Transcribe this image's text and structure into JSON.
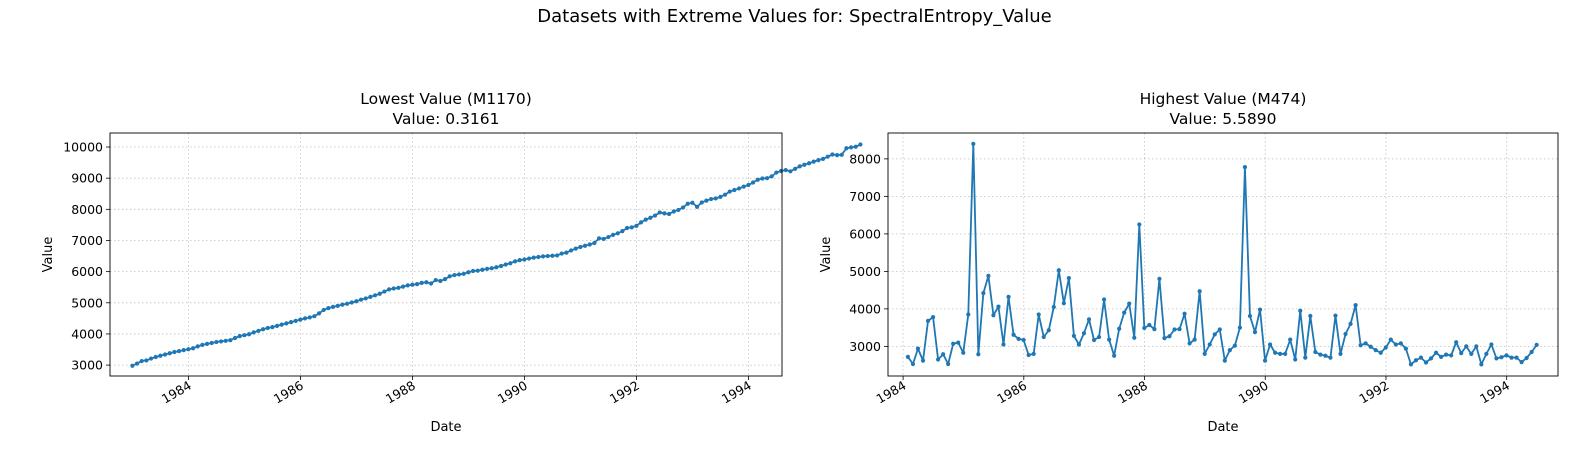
{
  "suptitle": "Datasets with Extreme Values for: SpectralEntropy_Value",
  "colors": {
    "line": "#1f77b4",
    "grid": "#b0b0b0"
  },
  "chart_data": [
    {
      "type": "line",
      "title_line1": "Lowest Value (M1170)",
      "title_line2": "Value: 0.3161",
      "xlabel": "Date",
      "ylabel": "Value",
      "grid": true,
      "xlim": [
        1982.6,
        1994.6
      ],
      "ylim": [
        2650,
        10450
      ],
      "x_ticks": [
        1984,
        1986,
        1988,
        1990,
        1992,
        1994
      ],
      "y_ticks": [
        3000,
        4000,
        5000,
        6000,
        7000,
        8000,
        9000,
        10000
      ],
      "series": [
        {
          "x_start": 1983.0,
          "x_step": 0.0833333,
          "values": [
            2980,
            3050,
            3130,
            3150,
            3210,
            3260,
            3300,
            3340,
            3380,
            3420,
            3450,
            3480,
            3510,
            3540,
            3600,
            3650,
            3680,
            3710,
            3740,
            3760,
            3780,
            3800,
            3870,
            3930,
            3960,
            3990,
            4050,
            4100,
            4150,
            4190,
            4220,
            4260,
            4300,
            4340,
            4380,
            4420,
            4460,
            4500,
            4530,
            4570,
            4660,
            4770,
            4830,
            4870,
            4900,
            4940,
            4970,
            5010,
            5050,
            5100,
            5140,
            5190,
            5240,
            5290,
            5360,
            5430,
            5460,
            5480,
            5520,
            5560,
            5580,
            5600,
            5640,
            5660,
            5620,
            5730,
            5700,
            5760,
            5850,
            5890,
            5910,
            5930,
            5980,
            6020,
            6030,
            6060,
            6090,
            6110,
            6140,
            6180,
            6230,
            6270,
            6330,
            6370,
            6390,
            6420,
            6450,
            6470,
            6490,
            6500,
            6510,
            6520,
            6580,
            6610,
            6680,
            6740,
            6790,
            6830,
            6870,
            6920,
            7070,
            7050,
            7110,
            7180,
            7230,
            7300,
            7400,
            7420,
            7470,
            7580,
            7670,
            7730,
            7800,
            7900,
            7870,
            7850,
            7930,
            7980,
            8060,
            8180,
            8210,
            8080,
            8220,
            8280,
            8330,
            8350,
            8400,
            8470,
            8570,
            8620,
            8670,
            8730,
            8780,
            8860,
            8950,
            8990,
            9000,
            9060,
            9180,
            9230,
            9260,
            9220,
            9300,
            9380,
            9430,
            9480,
            9530,
            9580,
            9620,
            9690,
            9760,
            9740,
            9750,
            9960,
            9990,
            10010,
            10080
          ]
        }
      ]
    },
    {
      "type": "line",
      "title_line1": "Highest Value (M474)",
      "title_line2": "Value: 5.5890",
      "xlabel": "Date",
      "ylabel": "Value",
      "grid": true,
      "xlim": [
        1983.75,
        1994.85
      ],
      "ylim": [
        2210,
        8690
      ],
      "x_ticks": [
        1984,
        1986,
        1988,
        1990,
        1992,
        1994
      ],
      "y_ticks": [
        3000,
        4000,
        5000,
        6000,
        7000,
        8000
      ],
      "series": [
        {
          "x_start": 1984.08,
          "x_step": 0.0833333,
          "values": [
            2720,
            2530,
            2940,
            2620,
            3680,
            3780,
            2650,
            2790,
            2530,
            3070,
            3100,
            2830,
            3850,
            8400,
            2790,
            4420,
            4880,
            3830,
            4060,
            3050,
            4320,
            3310,
            3200,
            3170,
            2770,
            2800,
            3850,
            3250,
            3430,
            4050,
            5030,
            4150,
            4820,
            3280,
            3050,
            3350,
            3720,
            3170,
            3250,
            4250,
            3180,
            2750,
            3470,
            3900,
            4140,
            3230,
            6250,
            3490,
            3570,
            3460,
            4800,
            3220,
            3270,
            3450,
            3460,
            3870,
            3080,
            3180,
            4470,
            2800,
            3050,
            3320,
            3450,
            2620,
            2900,
            3020,
            3500,
            7780,
            3810,
            3380,
            3980,
            2620,
            3050,
            2830,
            2800,
            2800,
            3180,
            2650,
            3950,
            2700,
            3810,
            2850,
            2780,
            2750,
            2700,
            3820,
            2800,
            3330,
            3600,
            4100,
            3030,
            3080,
            2990,
            2900,
            2830,
            2970,
            3180,
            3050,
            3080,
            2940,
            2520,
            2630,
            2700,
            2570,
            2680,
            2830,
            2720,
            2780,
            2760,
            3110,
            2820,
            3000,
            2800,
            3000,
            2520,
            2800,
            3050,
            2680,
            2710,
            2760,
            2700,
            2700,
            2580,
            2690,
            2850,
            3040
          ]
        }
      ]
    }
  ]
}
